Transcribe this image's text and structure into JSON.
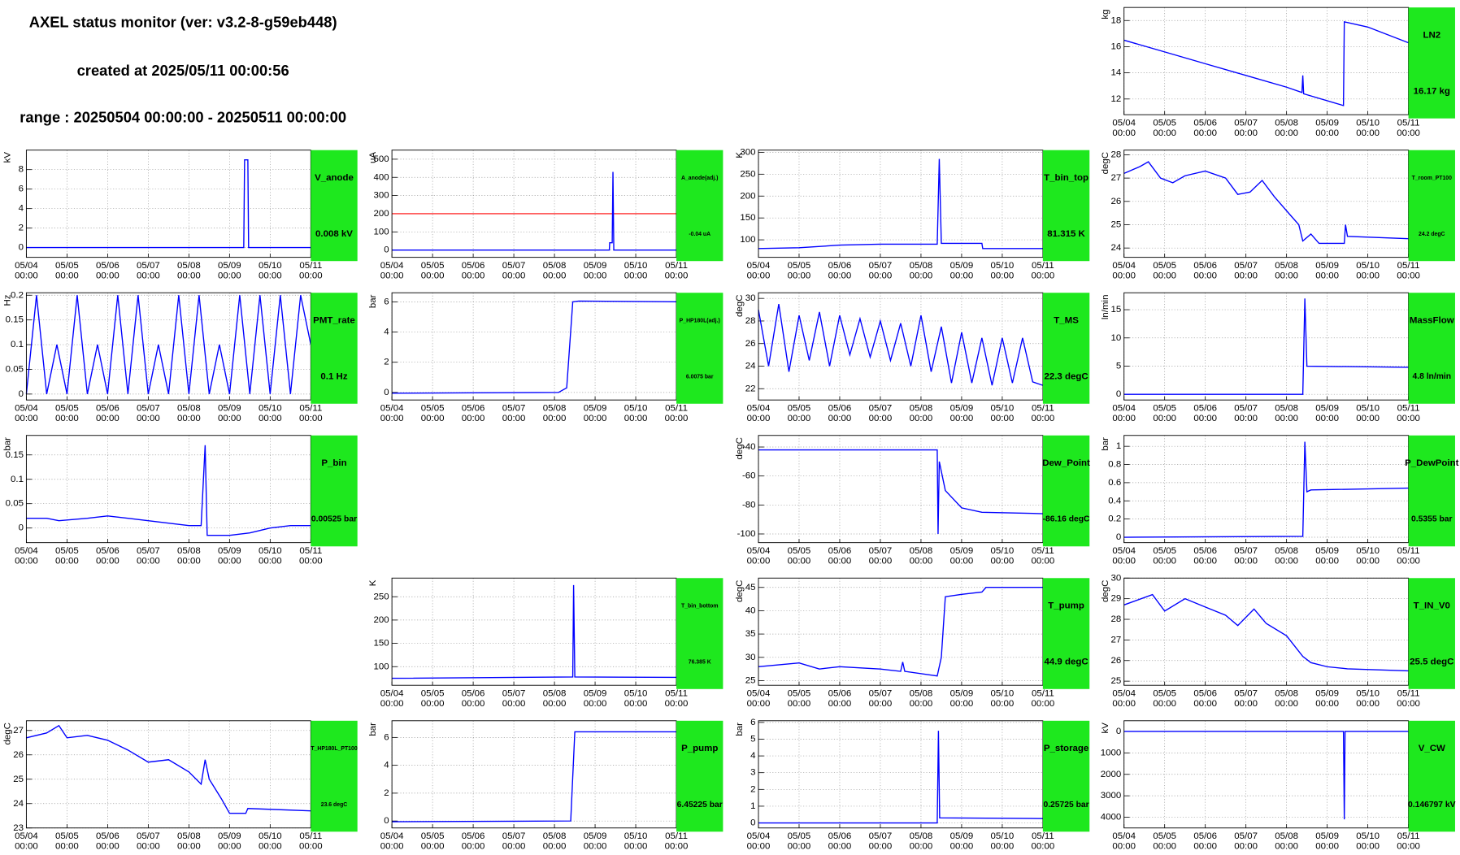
{
  "header": {
    "title": "AXEL status monitor (ver: v3.2-8-g59eb448)",
    "created": "created at 2025/05/11 00:00:56",
    "range": "range : 20250504 00:00:00 - 20250511 00:00:00"
  },
  "time_axis": {
    "xlim": [
      0,
      7
    ],
    "xticks": [
      {
        "value": 0,
        "label": "05/04"
      },
      {
        "value": 1,
        "label": "05/05"
      },
      {
        "value": 2,
        "label": "05/06"
      },
      {
        "value": 3,
        "label": "05/07"
      },
      {
        "value": 4,
        "label": "05/08"
      },
      {
        "value": 5,
        "label": "05/09"
      },
      {
        "value": 6,
        "label": "05/10"
      },
      {
        "value": 7,
        "label": "05/11"
      }
    ],
    "tick_time": "00:00"
  },
  "line_color": "#0000ff",
  "status_color": "#1ee81e",
  "grid": true,
  "chart_data": [
    {
      "type": "line",
      "name": "LN2",
      "status": "16.17 kg",
      "unit": "kg",
      "ylim": [
        10.8,
        19
      ],
      "yticks": [
        12,
        14,
        16,
        18
      ],
      "x": [
        0,
        1,
        2,
        3,
        4,
        4.38,
        4.4,
        4.42,
        5.4,
        5.42,
        6,
        7
      ],
      "values": [
        16.5,
        15.6,
        14.7,
        13.8,
        12.9,
        12.5,
        13.8,
        12.4,
        11.5,
        17.9,
        17.5,
        16.3
      ]
    },
    {
      "type": "line",
      "name": "V_anode",
      "status": "0.008 kV",
      "unit": "kV",
      "ylim": [
        -1,
        10
      ],
      "yticks": [
        0,
        2,
        4,
        6,
        8
      ],
      "x": [
        0,
        5.35,
        5.37,
        5.45,
        5.47,
        7
      ],
      "values": [
        0,
        0,
        9,
        9,
        0,
        0
      ]
    },
    {
      "type": "line",
      "name": "A_anode(adj.)",
      "status": "-0.04 uA",
      "unit": "uA",
      "ylim": [
        -40,
        550
      ],
      "yticks": [
        0,
        100,
        200,
        300,
        400,
        500
      ],
      "x": [
        0,
        5.35,
        5.36,
        5.42,
        5.44,
        5.46,
        7
      ],
      "values": [
        0,
        0,
        40,
        40,
        430,
        0,
        0
      ],
      "threshold": 200,
      "threshold_color": "#ff0000"
    },
    {
      "type": "line",
      "name": "T_bin_top",
      "status": "81.315 K",
      "unit": "K",
      "ylim": [
        60,
        305
      ],
      "yticks": [
        100,
        150,
        200,
        250,
        300
      ],
      "x": [
        0,
        1,
        2,
        3,
        4.4,
        4.45,
        4.5,
        5.5,
        5.52,
        7
      ],
      "values": [
        80,
        82,
        88,
        90,
        90,
        285,
        92,
        92,
        80,
        80
      ]
    },
    {
      "type": "line",
      "name": "T_room_PT100",
      "status": "24.2 degC",
      "unit": "degC",
      "ylim": [
        23.6,
        28.2
      ],
      "yticks": [
        24,
        25,
        26,
        27,
        28
      ],
      "x": [
        0,
        0.4,
        0.6,
        0.9,
        1.2,
        1.5,
        2,
        2.5,
        2.8,
        3.1,
        3.4,
        3.7,
        4.1,
        4.3,
        4.4,
        4.6,
        4.8,
        5.2,
        5.42,
        5.45,
        5.5,
        7
      ],
      "values": [
        27.2,
        27.5,
        27.7,
        27,
        26.8,
        27.1,
        27.3,
        27,
        26.3,
        26.4,
        26.9,
        26.2,
        25.4,
        25,
        24.3,
        24.6,
        24.2,
        24.2,
        24.2,
        25,
        24.5,
        24.4
      ]
    },
    {
      "type": "line",
      "name": "PMT_rate",
      "status": "0.1 Hz",
      "unit": "Hz",
      "ylim": [
        -0.012,
        0.205
      ],
      "yticks": [
        0,
        0.05,
        0.1,
        0.15,
        0.2
      ],
      "x": [
        0,
        0.25,
        0.5,
        0.75,
        1,
        1.25,
        1.5,
        1.75,
        2,
        2.25,
        2.5,
        2.75,
        3,
        3.25,
        3.5,
        3.75,
        4,
        4.25,
        4.5,
        4.75,
        5,
        5.25,
        5.5,
        5.75,
        6,
        6.25,
        6.5,
        6.75,
        7
      ],
      "values": [
        0,
        0.2,
        0,
        0.1,
        0,
        0.2,
        0,
        0.1,
        0,
        0.2,
        0,
        0.2,
        0,
        0.1,
        0,
        0.2,
        0,
        0.2,
        0,
        0.1,
        0,
        0.2,
        0,
        0.2,
        0,
        0.2,
        0,
        0.2,
        0.1
      ]
    },
    {
      "type": "line",
      "name": "P_HP180L(adj.)",
      "status": "6.0075 bar",
      "unit": "bar",
      "ylim": [
        -0.5,
        6.6
      ],
      "yticks": [
        0,
        2,
        4,
        6
      ],
      "x": [
        0,
        4.1,
        4.3,
        4.45,
        4.6,
        7
      ],
      "values": [
        -0.05,
        0,
        0.3,
        6,
        6.05,
        6
      ]
    },
    {
      "type": "line",
      "name": "T_MS",
      "status": "22.3 degC",
      "unit": "degC",
      "ylim": [
        21,
        30.5
      ],
      "yticks": [
        22,
        24,
        26,
        28,
        30
      ],
      "x": [
        0,
        0.25,
        0.5,
        0.75,
        1,
        1.25,
        1.5,
        1.75,
        2,
        2.25,
        2.5,
        2.75,
        3,
        3.25,
        3.5,
        3.75,
        4,
        4.25,
        4.5,
        4.75,
        5,
        5.25,
        5.5,
        5.75,
        6,
        6.25,
        6.5,
        6.75,
        7
      ],
      "values": [
        29,
        24,
        29.5,
        23.5,
        28.5,
        24.5,
        28.8,
        24,
        28.5,
        25,
        28.2,
        24.8,
        28,
        24.5,
        27.8,
        24,
        28.5,
        23.5,
        27.5,
        22.5,
        27,
        22.5,
        26.5,
        22.3,
        26.5,
        22.5,
        26.5,
        22.6,
        22.3
      ]
    },
    {
      "type": "line",
      "name": "MassFlow",
      "status": "4.8 ln/min",
      "unit": "ln/min",
      "ylim": [
        -1,
        18
      ],
      "yticks": [
        0,
        5,
        10,
        15
      ],
      "x": [
        0,
        4.4,
        4.45,
        4.5,
        7
      ],
      "values": [
        0,
        0,
        17,
        5,
        4.8
      ]
    },
    {
      "type": "line",
      "name": "P_bin",
      "status": "0.00525 bar",
      "unit": "bar",
      "ylim": [
        -0.03,
        0.19
      ],
      "yticks": [
        0,
        0.05,
        0.1,
        0.15
      ],
      "x": [
        0,
        0.5,
        0.8,
        1.5,
        2,
        2.5,
        3,
        3.5,
        4,
        4.3,
        4.4,
        4.45,
        5,
        5.5,
        6,
        6.5,
        7
      ],
      "values": [
        0.02,
        0.02,
        0.015,
        0.02,
        0.025,
        0.02,
        0.015,
        0.01,
        0.005,
        0.005,
        0.17,
        -0.015,
        -0.015,
        -0.01,
        0,
        0.005,
        0.005
      ]
    },
    {
      "type": "line",
      "name": "Dew_Point",
      "status": "-86.16 degC",
      "unit": "degC",
      "ylim": [
        -106,
        -32
      ],
      "yticks": [
        -40,
        -60,
        -80,
        -100
      ],
      "x": [
        0,
        4.4,
        4.42,
        4.45,
        4.6,
        5,
        5.5,
        7
      ],
      "values": [
        -42,
        -42,
        -100,
        -50,
        -70,
        -82,
        -85,
        -86
      ]
    },
    {
      "type": "line",
      "name": "P_DewPoint",
      "status": "0.5355 bar",
      "unit": "bar",
      "ylim": [
        -0.06,
        1.12
      ],
      "yticks": [
        0,
        0.2,
        0.4,
        0.6,
        0.8,
        1
      ],
      "x": [
        0,
        4.4,
        4.45,
        4.5,
        4.6,
        7
      ],
      "values": [
        0,
        0.01,
        1.05,
        0.5,
        0.52,
        0.54
      ]
    },
    {
      "type": "line",
      "name": "T_bin_bottom",
      "status": "76.385 K",
      "unit": "K",
      "ylim": [
        60,
        290
      ],
      "yticks": [
        100,
        150,
        200,
        250
      ],
      "x": [
        0,
        4.45,
        4.47,
        4.5,
        7
      ],
      "values": [
        75,
        78,
        275,
        78,
        77
      ]
    },
    {
      "type": "line",
      "name": "T_pump",
      "status": "44.9 degC",
      "unit": "degC",
      "ylim": [
        24,
        47
      ],
      "yticks": [
        25,
        30,
        35,
        40,
        45
      ],
      "x": [
        0,
        1,
        1.5,
        2,
        3,
        3.5,
        3.55,
        3.6,
        4.4,
        4.5,
        4.6,
        5,
        5.5,
        5.6,
        7
      ],
      "values": [
        28,
        28.8,
        27.5,
        28,
        27.5,
        27,
        29,
        27,
        26,
        30,
        43,
        43.5,
        44,
        45,
        45
      ]
    },
    {
      "type": "line",
      "name": "T_IN_V0",
      "status": "25.5 degC",
      "unit": "degC",
      "ylim": [
        24.8,
        30
      ],
      "yticks": [
        25,
        26,
        27,
        28,
        29,
        30
      ],
      "x": [
        0,
        0.7,
        1,
        1.5,
        2,
        2.5,
        2.8,
        3.2,
        3.5,
        4,
        4.4,
        4.6,
        5,
        5.5,
        7
      ],
      "values": [
        28.7,
        29.2,
        28.4,
        29,
        28.6,
        28.2,
        27.7,
        28.5,
        27.8,
        27.2,
        26.2,
        25.9,
        25.7,
        25.6,
        25.5
      ]
    },
    {
      "type": "line",
      "name": "T_HP180L_PT100",
      "status": "23.6 degC",
      "unit": "degC",
      "ylim": [
        23,
        27.4
      ],
      "yticks": [
        23,
        24,
        25,
        26,
        27
      ],
      "x": [
        0,
        0.5,
        0.8,
        1,
        1.5,
        2,
        2.5,
        3,
        3.5,
        4,
        4.3,
        4.4,
        4.5,
        4.8,
        5,
        5.4,
        5.45,
        7
      ],
      "values": [
        26.7,
        26.9,
        27.2,
        26.7,
        26.8,
        26.6,
        26.2,
        25.7,
        25.8,
        25.3,
        24.8,
        25.8,
        25,
        24.2,
        23.6,
        23.6,
        23.8,
        23.7
      ]
    },
    {
      "type": "line",
      "name": "P_pump",
      "status": "6.45225 bar",
      "unit": "bar",
      "ylim": [
        -0.5,
        7.2
      ],
      "yticks": [
        0,
        2,
        4,
        6
      ],
      "x": [
        0,
        4.4,
        4.5,
        7
      ],
      "values": [
        -0.05,
        0,
        6.4,
        6.4
      ]
    },
    {
      "type": "line",
      "name": "P_storage",
      "status": "0.25725 bar",
      "unit": "bar",
      "ylim": [
        -0.3,
        6.1
      ],
      "yticks": [
        0,
        1,
        2,
        3,
        4,
        5,
        6
      ],
      "x": [
        0,
        4.4,
        4.43,
        4.46,
        7
      ],
      "values": [
        0,
        0,
        5.5,
        0.3,
        0.26
      ]
    },
    {
      "type": "line",
      "name": "V_CW",
      "status": "0.146797 kV",
      "unit": "kV",
      "ylim": [
        -500,
        4500
      ],
      "yticks": [
        0,
        1000,
        2000,
        3000,
        4000
      ],
      "inverted": true,
      "x": [
        0,
        5.4,
        5.42,
        5.44,
        7
      ],
      "values": [
        0,
        0,
        4100,
        0,
        0
      ]
    }
  ]
}
